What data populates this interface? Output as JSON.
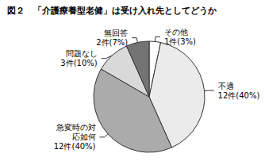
{
  "chart_data": {
    "type": "pie",
    "title": "図２　「介護療養型老健」は受け入れ先としてどうか",
    "categories": [
      "その他",
      "不適",
      "急変時の対応如何",
      "問題なし",
      "無回答"
    ],
    "values": [
      1,
      12,
      12,
      3,
      2
    ],
    "value_labels": [
      "1件(3%)",
      "12件(40%)",
      "12件(40%)",
      "3件(10%)",
      "2件(7%)"
    ],
    "colors": [
      "#ffffff",
      "#ebebeb",
      "#ababab",
      "#d9d9d9",
      "#737373"
    ],
    "data_labels": true
  }
}
